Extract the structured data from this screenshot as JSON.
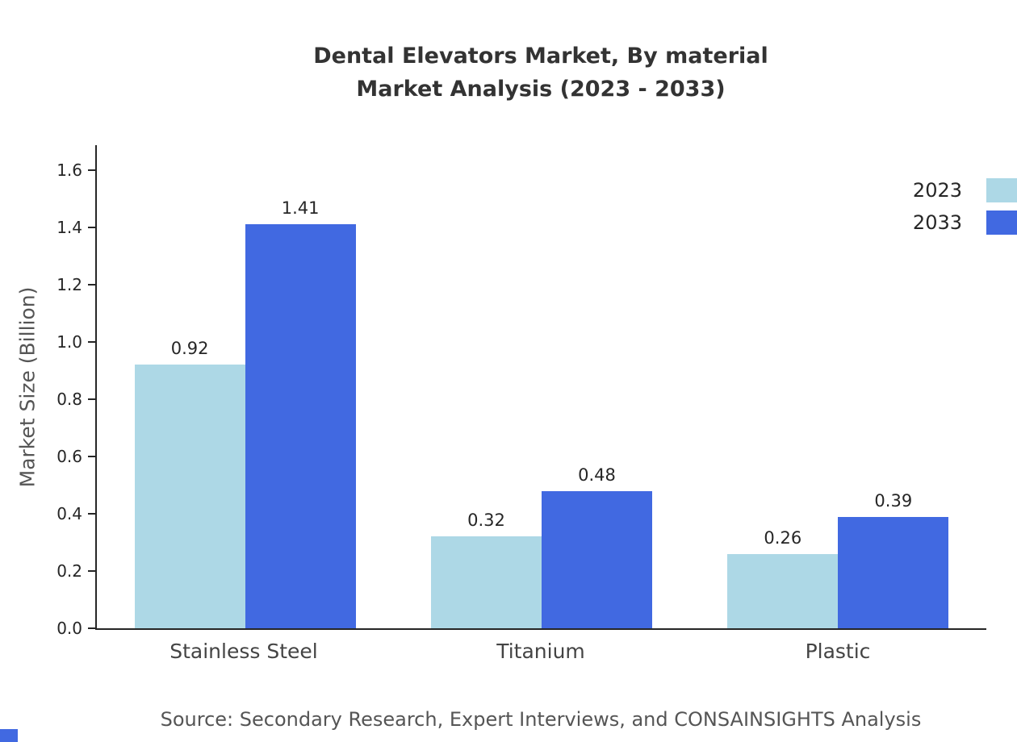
{
  "title": {
    "line1": "Dental Elevators Market, By material",
    "line2": "Market Analysis (2023 - 2033)"
  },
  "source": "Source: Secondary Research, Expert Interviews, and CONSAINSIGHTS Analysis",
  "colors": {
    "series_2023": "#ADD8E6",
    "series_2033": "#4169E1",
    "axis": "#262626",
    "accent": "#4169E1"
  },
  "chart_data": {
    "type": "bar",
    "title": "Dental Elevators Market, By material Market Analysis (2023 - 2033)",
    "categories": [
      "Stainless Steel",
      "Titanium",
      "Plastic"
    ],
    "series": [
      {
        "name": "2023",
        "color": "#ADD8E6",
        "values": [
          0.92,
          0.32,
          0.26
        ],
        "labels": [
          "0.92",
          "0.32",
          "0.26"
        ]
      },
      {
        "name": "2033",
        "color": "#4169E1",
        "values": [
          1.41,
          0.48,
          0.39
        ],
        "labels": [
          "1.41",
          "0.48",
          "0.39"
        ]
      }
    ],
    "xlabel": "",
    "ylabel": "Market Size (Billion)",
    "ylim": [
      0,
      1.6
    ],
    "yticks": [
      "0.0",
      "0.2",
      "0.4",
      "0.6",
      "0.8",
      "1.0",
      "1.2",
      "1.4",
      "1.6"
    ],
    "grid": false,
    "legend_position": "outside-right-top",
    "bar_value_labels": true
  }
}
